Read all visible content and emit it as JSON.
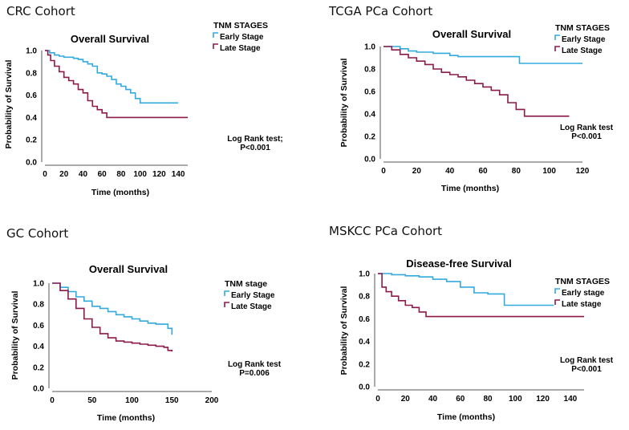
{
  "colors": {
    "early": "#33AADD",
    "late": "#8B1A4A",
    "axis": "#555555"
  },
  "chart_data": [
    {
      "type": "line",
      "cohort_label": "CRC Cohort",
      "title": "Overall Survival",
      "xlabel": "Time (months)",
      "ylabel": "Probability of Survival",
      "xlim": [
        0,
        150
      ],
      "ylim": [
        0,
        1
      ],
      "xticks": [
        "0",
        "20",
        "40",
        "60",
        "80",
        "100",
        "120",
        "140"
      ],
      "yticks": [
        "0.0",
        "0.2",
        "0.4",
        "0.6",
        "0.8",
        "1.0"
      ],
      "legend_title": "TNM STAGES",
      "test_line1": "Log Rank test;",
      "test_line2": "P<0.001",
      "series": [
        {
          "name": "Early Stage",
          "color_key": "early",
          "x": [
            0,
            5,
            10,
            15,
            20,
            30,
            35,
            40,
            45,
            50,
            55,
            60,
            65,
            70,
            75,
            80,
            85,
            90,
            95,
            100,
            110,
            120,
            130,
            140
          ],
          "y": [
            1.0,
            0.98,
            0.96,
            0.95,
            0.94,
            0.93,
            0.92,
            0.9,
            0.88,
            0.86,
            0.8,
            0.79,
            0.77,
            0.74,
            0.7,
            0.68,
            0.65,
            0.62,
            0.57,
            0.53,
            0.53,
            0.53,
            0.53,
            0.53
          ]
        },
        {
          "name": "Late Stage",
          "color_key": "late",
          "x": [
            0,
            3,
            6,
            10,
            15,
            20,
            25,
            30,
            35,
            40,
            45,
            50,
            55,
            60,
            65,
            70,
            80,
            100,
            120,
            150
          ],
          "y": [
            1.0,
            0.96,
            0.91,
            0.86,
            0.81,
            0.76,
            0.73,
            0.7,
            0.65,
            0.62,
            0.55,
            0.5,
            0.47,
            0.44,
            0.4,
            0.4,
            0.4,
            0.4,
            0.4,
            0.4
          ]
        }
      ]
    },
    {
      "type": "line",
      "cohort_label": "TCGA PCa Cohort",
      "title": "Overall Survival",
      "xlabel": "Time (months)",
      "ylabel": "Probability of Survival",
      "xlim": [
        0,
        120
      ],
      "ylim": [
        0,
        1
      ],
      "xticks": [
        "0",
        "20",
        "40",
        "60",
        "80",
        "100",
        "120"
      ],
      "yticks": [
        "0.0",
        "0.2",
        "0.4",
        "0.6",
        "0.8",
        "1.0"
      ],
      "legend_title": "TNM STAGES",
      "test_line1": "Log Rank test",
      "test_line2": "P<0.001",
      "series": [
        {
          "name": "Early Stage",
          "color_key": "early",
          "x": [
            0,
            10,
            15,
            20,
            30,
            40,
            45,
            50,
            60,
            70,
            80,
            82,
            90,
            100,
            110,
            120
          ],
          "y": [
            1.0,
            0.98,
            0.96,
            0.95,
            0.94,
            0.92,
            0.91,
            0.91,
            0.91,
            0.91,
            0.91,
            0.85,
            0.85,
            0.85,
            0.85,
            0.85
          ]
        },
        {
          "name": "Late Stage",
          "color_key": "late",
          "x": [
            0,
            5,
            10,
            15,
            20,
            25,
            30,
            35,
            40,
            45,
            50,
            55,
            60,
            65,
            70,
            75,
            80,
            85,
            90,
            100,
            112
          ],
          "y": [
            1.0,
            0.97,
            0.93,
            0.9,
            0.87,
            0.84,
            0.8,
            0.77,
            0.75,
            0.73,
            0.7,
            0.67,
            0.64,
            0.61,
            0.57,
            0.5,
            0.44,
            0.38,
            0.38,
            0.38,
            0.38
          ]
        }
      ]
    },
    {
      "type": "line",
      "cohort_label": "GC Cohort",
      "title": "Overall Survival",
      "xlabel": "Time (months)",
      "ylabel": "Probability of Survival",
      "xlim": [
        0,
        200
      ],
      "ylim": [
        0,
        1
      ],
      "xticks": [
        "0",
        "50",
        "100",
        "150",
        "200"
      ],
      "yticks": [
        "0.0",
        "0.2",
        "0.4",
        "0.6",
        "0.8",
        "1.0"
      ],
      "legend_title": "TNM stage",
      "test_line1": "Log Rank test",
      "test_line2": "P=0.006",
      "series": [
        {
          "name": "Early Stage",
          "color_key": "early",
          "x": [
            0,
            10,
            20,
            30,
            40,
            50,
            60,
            70,
            80,
            90,
            100,
            110,
            120,
            130,
            140,
            145,
            150
          ],
          "y": [
            1.0,
            0.96,
            0.92,
            0.87,
            0.83,
            0.78,
            0.76,
            0.73,
            0.7,
            0.68,
            0.66,
            0.64,
            0.62,
            0.61,
            0.61,
            0.57,
            0.51
          ]
        },
        {
          "name": "Late Stage",
          "color_key": "late",
          "x": [
            0,
            10,
            20,
            30,
            40,
            50,
            60,
            70,
            80,
            90,
            100,
            110,
            120,
            130,
            140,
            145,
            150
          ],
          "y": [
            1.0,
            0.93,
            0.85,
            0.76,
            0.66,
            0.58,
            0.52,
            0.48,
            0.45,
            0.44,
            0.43,
            0.42,
            0.41,
            0.4,
            0.39,
            0.36,
            0.35
          ]
        }
      ]
    },
    {
      "type": "line",
      "cohort_label": "MSKCC PCa Cohort",
      "title": "Disease-free Survival",
      "xlabel": "Time (months)",
      "ylabel": "Probability of Survival",
      "xlim": [
        0,
        150
      ],
      "ylim": [
        0,
        1
      ],
      "xticks": [
        "0",
        "20",
        "40",
        "60",
        "80",
        "100",
        "120",
        "140"
      ],
      "yticks": [
        "0.0",
        "0.2",
        "0.4",
        "0.6",
        "0.8",
        "1.0"
      ],
      "legend_title": "TNM STAGES",
      "test_line1": "Log Rank test",
      "test_line2": "P<0.001",
      "series": [
        {
          "name": "Early stage",
          "color_key": "early",
          "x": [
            0,
            10,
            20,
            30,
            40,
            50,
            60,
            70,
            80,
            90,
            92,
            100,
            110,
            128
          ],
          "y": [
            1.0,
            0.99,
            0.98,
            0.97,
            0.95,
            0.93,
            0.88,
            0.83,
            0.82,
            0.82,
            0.72,
            0.72,
            0.72,
            0.72
          ]
        },
        {
          "name": "Late stage",
          "color_key": "late",
          "x": [
            0,
            3,
            6,
            10,
            15,
            20,
            25,
            30,
            35,
            40,
            60,
            80,
            100,
            120,
            150
          ],
          "y": [
            1.0,
            0.88,
            0.84,
            0.8,
            0.76,
            0.72,
            0.7,
            0.66,
            0.62,
            0.62,
            0.62,
            0.62,
            0.62,
            0.62,
            0.62
          ]
        }
      ]
    }
  ]
}
